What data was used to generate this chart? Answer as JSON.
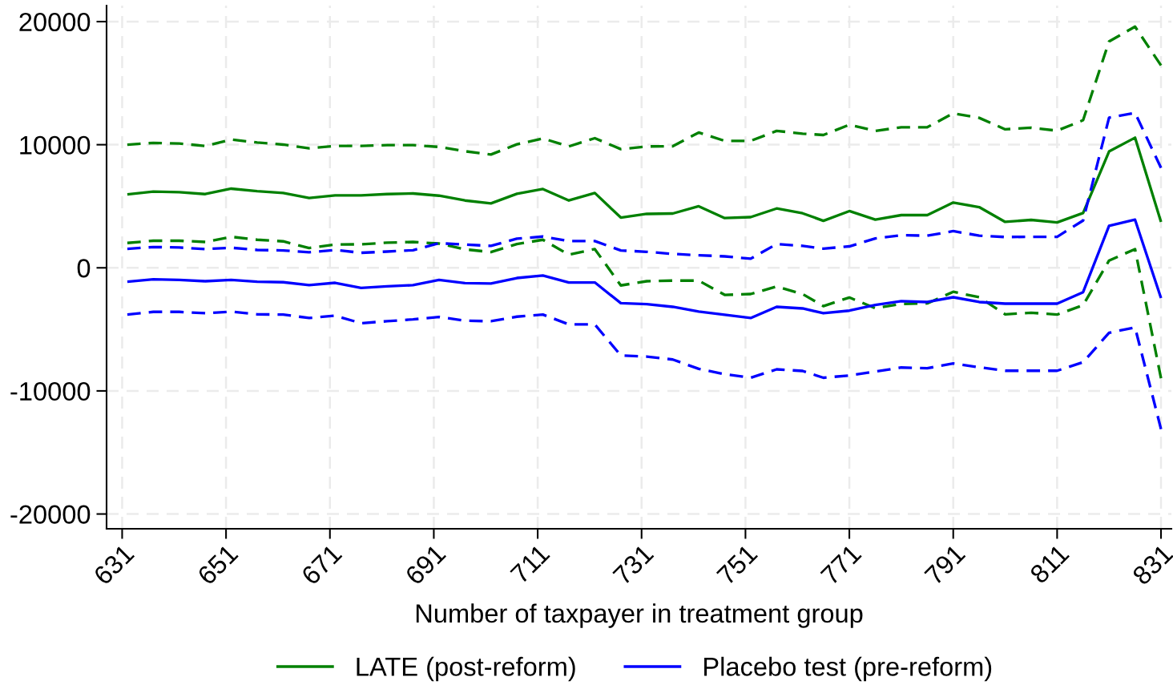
{
  "chart_data": {
    "type": "line",
    "xlabel": "Number of taxpayer in treatment group",
    "x": [
      632,
      637,
      642,
      647,
      652,
      657,
      662,
      667,
      672,
      677,
      682,
      687,
      692,
      697,
      702,
      707,
      712,
      717,
      722,
      727,
      732,
      737,
      742,
      747,
      752,
      757,
      762,
      766,
      771,
      776,
      781,
      786,
      791,
      796,
      801,
      806,
      811,
      816,
      821,
      826,
      831
    ],
    "xlim": [
      628,
      833
    ],
    "xticks": [
      631,
      651,
      671,
      691,
      711,
      731,
      751,
      771,
      791,
      811,
      831
    ],
    "ylim": [
      -21200,
      21300
    ],
    "yticks": [
      -20000,
      -10000,
      0,
      10000,
      20000
    ],
    "grid": true,
    "legend": "bottom",
    "series": [
      {
        "color": "#008000",
        "line_style": "dashed",
        "values": [
          10000,
          10150,
          10100,
          9900,
          10420,
          10180,
          10010,
          9710,
          9900,
          9900,
          9970,
          9970,
          9820,
          9470,
          9200,
          10030,
          10510,
          9860,
          10530,
          9640,
          9860,
          9880,
          10990,
          10310,
          10310,
          11120,
          10900,
          10790,
          11620,
          11120,
          11420,
          11420,
          12550,
          12180,
          11250,
          11380,
          11140,
          11990,
          18390,
          19590,
          16440
        ]
      },
      {
        "name": "LATE (post-reform)",
        "color": "#008000",
        "line_style": "solid",
        "values": [
          5970,
          6190,
          6140,
          5990,
          6430,
          6230,
          6080,
          5670,
          5880,
          5880,
          5990,
          6040,
          5860,
          5470,
          5230,
          6010,
          6400,
          5470,
          6080,
          4080,
          4380,
          4410,
          5000,
          4040,
          4120,
          4820,
          4430,
          3820,
          4610,
          3910,
          4280,
          4280,
          5300,
          4930,
          3730,
          3890,
          3690,
          4450,
          9450,
          10570,
          3730
        ]
      },
      {
        "color": "#008000",
        "line_style": "dashed",
        "values": [
          2020,
          2200,
          2200,
          2100,
          2520,
          2280,
          2150,
          1610,
          1890,
          1910,
          2040,
          2100,
          1970,
          1500,
          1280,
          1930,
          2280,
          1060,
          1520,
          -1430,
          -1090,
          -1040,
          -1040,
          -2200,
          -2130,
          -1520,
          -2130,
          -3110,
          -2410,
          -3280,
          -2930,
          -2890,
          -1950,
          -2390,
          -3780,
          -3650,
          -3800,
          -3040,
          590,
          1520,
          -8970
        ]
      },
      {
        "color": "#0000ff",
        "line_style": "dashed",
        "values": [
          1540,
          1690,
          1650,
          1520,
          1630,
          1450,
          1410,
          1260,
          1450,
          1220,
          1320,
          1430,
          2000,
          1890,
          1780,
          2370,
          2540,
          2170,
          2170,
          1410,
          1300,
          1130,
          1020,
          930,
          740,
          1930,
          1780,
          1560,
          1740,
          2390,
          2650,
          2610,
          2980,
          2610,
          2500,
          2520,
          2520,
          3840,
          12200,
          12590,
          8120
        ]
      },
      {
        "name": "Placebo test (pre-reform)",
        "color": "#0000ff",
        "line_style": "solid",
        "values": [
          -1130,
          -930,
          -980,
          -1090,
          -980,
          -1130,
          -1170,
          -1410,
          -1220,
          -1630,
          -1500,
          -1410,
          -980,
          -1240,
          -1280,
          -830,
          -630,
          -1190,
          -1190,
          -2870,
          -2950,
          -3170,
          -3560,
          -3820,
          -4080,
          -3170,
          -3300,
          -3690,
          -3480,
          -3020,
          -2710,
          -2780,
          -2390,
          -2780,
          -2910,
          -2910,
          -2910,
          -1980,
          3410,
          3910,
          -2450
        ]
      },
      {
        "color": "#0000ff",
        "line_style": "dashed",
        "values": [
          -3800,
          -3580,
          -3580,
          -3690,
          -3560,
          -3780,
          -3800,
          -4080,
          -3890,
          -4500,
          -4340,
          -4190,
          -3990,
          -4300,
          -4340,
          -3970,
          -3800,
          -4600,
          -4600,
          -7120,
          -7210,
          -7450,
          -8210,
          -8640,
          -8930,
          -8250,
          -8380,
          -8930,
          -8750,
          -8430,
          -8100,
          -8160,
          -7770,
          -8080,
          -8360,
          -8360,
          -8360,
          -7670,
          -5280,
          -4840,
          -13100
        ]
      }
    ]
  }
}
